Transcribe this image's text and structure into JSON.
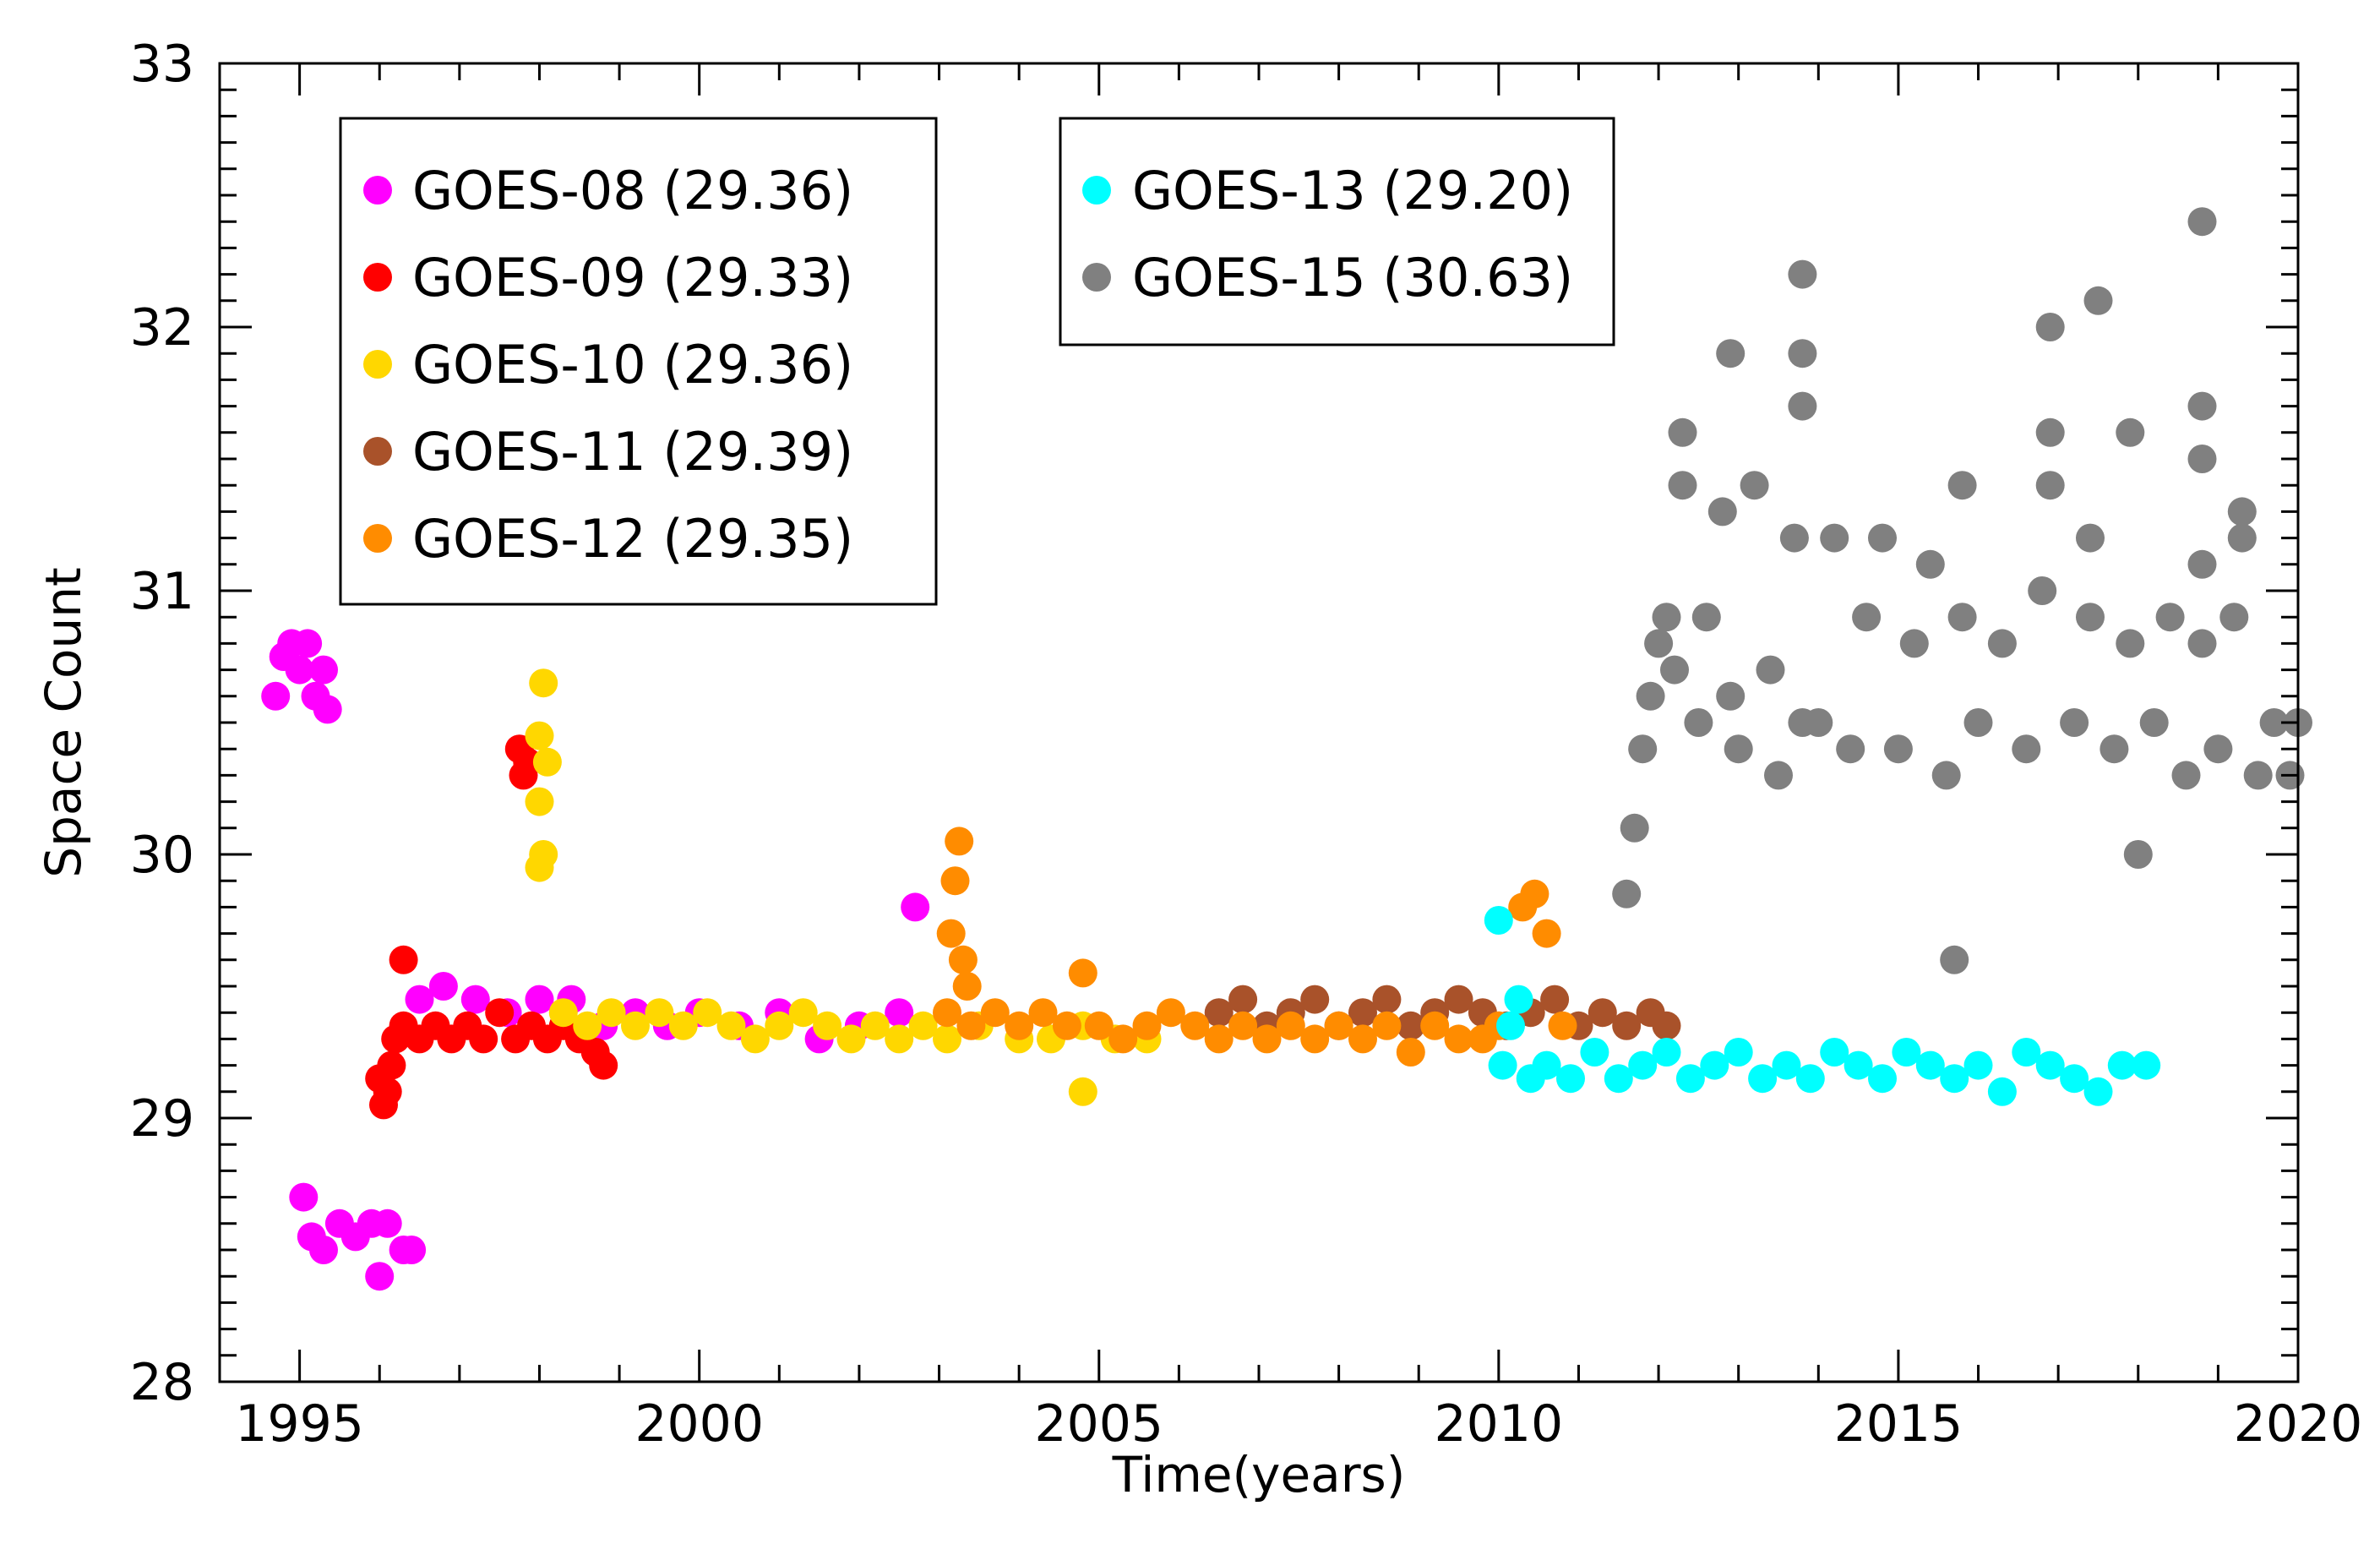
{
  "chart_data": {
    "type": "scatter",
    "title": "",
    "xlabel": "Time(years)",
    "ylabel": "Space Count",
    "xlim": [
      1994,
      2020
    ],
    "ylim": [
      28,
      33
    ],
    "xticks": [
      1995,
      2000,
      2005,
      2010,
      2015,
      2020
    ],
    "yticks": [
      28,
      29,
      30,
      31,
      32,
      33
    ],
    "xtick_labels": [
      "1995",
      "2000",
      "2005",
      "2010",
      "2015",
      "2020"
    ],
    "ytick_labels": [
      "28",
      "29",
      "30",
      "31",
      "32",
      "33"
    ],
    "grid": false,
    "legend_placement": "top-left",
    "series": [
      {
        "name": "GOES-08",
        "label": "GOES-08 (29.36)",
        "mean": 29.36,
        "color": "#ff00ff",
        "points": [
          [
            1994.7,
            30.6
          ],
          [
            1994.8,
            30.75
          ],
          [
            1994.9,
            30.8
          ],
          [
            1995.0,
            30.7
          ],
          [
            1995.1,
            30.8
          ],
          [
            1995.2,
            30.6
          ],
          [
            1995.3,
            30.7
          ],
          [
            1995.35,
            30.55
          ],
          [
            1995.05,
            28.7
          ],
          [
            1995.15,
            28.55
          ],
          [
            1995.3,
            28.5
          ],
          [
            1995.5,
            28.6
          ],
          [
            1995.7,
            28.55
          ],
          [
            1995.9,
            28.6
          ],
          [
            1996.0,
            28.4
          ],
          [
            1996.1,
            28.6
          ],
          [
            1996.3,
            28.5
          ],
          [
            1996.4,
            28.5
          ],
          [
            1996.5,
            29.45
          ],
          [
            1996.8,
            29.5
          ],
          [
            1997.2,
            29.45
          ],
          [
            1997.6,
            29.4
          ],
          [
            1998.0,
            29.45
          ],
          [
            1998.4,
            29.45
          ],
          [
            1998.8,
            29.35
          ],
          [
            1999.2,
            29.4
          ],
          [
            1999.6,
            29.35
          ],
          [
            2000.0,
            29.4
          ],
          [
            2000.5,
            29.35
          ],
          [
            2001.0,
            29.4
          ],
          [
            2001.5,
            29.3
          ],
          [
            2002.0,
            29.35
          ],
          [
            2002.5,
            29.4
          ],
          [
            2002.7,
            29.8
          ]
        ]
      },
      {
        "name": "GOES-09",
        "label": "GOES-09 (29.33)",
        "mean": 29.33,
        "color": "#ff0000",
        "points": [
          [
            1996.0,
            29.15
          ],
          [
            1996.05,
            29.05
          ],
          [
            1996.1,
            29.1
          ],
          [
            1996.15,
            29.2
          ],
          [
            1996.2,
            29.3
          ],
          [
            1996.3,
            29.35
          ],
          [
            1996.3,
            29.6
          ],
          [
            1996.5,
            29.3
          ],
          [
            1996.7,
            29.35
          ],
          [
            1996.9,
            29.3
          ],
          [
            1997.1,
            29.35
          ],
          [
            1997.3,
            29.3
          ],
          [
            1997.5,
            29.4
          ],
          [
            1997.7,
            29.3
          ],
          [
            1997.9,
            29.35
          ],
          [
            1997.75,
            30.4
          ],
          [
            1997.85,
            30.35
          ],
          [
            1997.8,
            30.3
          ],
          [
            1998.1,
            29.3
          ],
          [
            1998.3,
            29.35
          ],
          [
            1998.5,
            29.3
          ],
          [
            1998.7,
            29.25
          ],
          [
            1998.8,
            29.2
          ]
        ]
      },
      {
        "name": "GOES-10",
        "label": "GOES-10 (29.36)",
        "mean": 29.36,
        "color": "#ffd700",
        "points": [
          [
            1998.0,
            29.95
          ],
          [
            1998.0,
            30.2
          ],
          [
            1998.0,
            30.45
          ],
          [
            1998.05,
            30.65
          ],
          [
            1998.1,
            30.35
          ],
          [
            1998.05,
            30.0
          ],
          [
            1998.3,
            29.4
          ],
          [
            1998.6,
            29.35
          ],
          [
            1998.9,
            29.4
          ],
          [
            1999.2,
            29.35
          ],
          [
            1999.5,
            29.4
          ],
          [
            1999.8,
            29.35
          ],
          [
            2000.1,
            29.4
          ],
          [
            2000.4,
            29.35
          ],
          [
            2000.7,
            29.3
          ],
          [
            2001.0,
            29.35
          ],
          [
            2001.3,
            29.4
          ],
          [
            2001.6,
            29.35
          ],
          [
            2001.9,
            29.3
          ],
          [
            2002.2,
            29.35
          ],
          [
            2002.5,
            29.3
          ],
          [
            2002.8,
            29.35
          ],
          [
            2003.1,
            29.3
          ],
          [
            2003.5,
            29.35
          ],
          [
            2004.0,
            29.3
          ],
          [
            2004.4,
            29.3
          ],
          [
            2004.8,
            29.35
          ],
          [
            2004.8,
            29.1
          ],
          [
            2005.2,
            29.3
          ],
          [
            2005.6,
            29.3
          ]
        ]
      },
      {
        "name": "GOES-11",
        "label": "GOES-11 (29.39)",
        "mean": 29.39,
        "color": "#a9522a",
        "points": [
          [
            2006.5,
            29.4
          ],
          [
            2006.8,
            29.45
          ],
          [
            2007.1,
            29.35
          ],
          [
            2007.4,
            29.4
          ],
          [
            2007.7,
            29.45
          ],
          [
            2008.0,
            29.35
          ],
          [
            2008.3,
            29.4
          ],
          [
            2008.6,
            29.45
          ],
          [
            2008.9,
            29.35
          ],
          [
            2009.2,
            29.4
          ],
          [
            2009.5,
            29.45
          ],
          [
            2009.8,
            29.4
          ],
          [
            2010.1,
            29.35
          ],
          [
            2010.4,
            29.4
          ],
          [
            2010.7,
            29.45
          ],
          [
            2011.0,
            29.35
          ],
          [
            2011.3,
            29.4
          ],
          [
            2011.6,
            29.35
          ],
          [
            2011.9,
            29.4
          ],
          [
            2012.1,
            29.35
          ]
        ]
      },
      {
        "name": "GOES-12",
        "label": "GOES-12 (29.35)",
        "mean": 29.35,
        "color": "#ff8c00",
        "points": [
          [
            2003.1,
            29.4
          ],
          [
            2003.15,
            29.7
          ],
          [
            2003.2,
            29.9
          ],
          [
            2003.25,
            30.05
          ],
          [
            2003.3,
            29.6
          ],
          [
            2003.35,
            29.5
          ],
          [
            2003.4,
            29.35
          ],
          [
            2003.7,
            29.4
          ],
          [
            2004.0,
            29.35
          ],
          [
            2004.3,
            29.4
          ],
          [
            2004.6,
            29.35
          ],
          [
            2004.8,
            29.55
          ],
          [
            2005.0,
            29.35
          ],
          [
            2005.3,
            29.3
          ],
          [
            2005.6,
            29.35
          ],
          [
            2005.9,
            29.4
          ],
          [
            2006.2,
            29.35
          ],
          [
            2006.5,
            29.3
          ],
          [
            2006.8,
            29.35
          ],
          [
            2007.1,
            29.3
          ],
          [
            2007.4,
            29.35
          ],
          [
            2007.7,
            29.3
          ],
          [
            2008.0,
            29.35
          ],
          [
            2008.3,
            29.3
          ],
          [
            2008.6,
            29.35
          ],
          [
            2008.9,
            29.25
          ],
          [
            2009.2,
            29.35
          ],
          [
            2009.5,
            29.3
          ],
          [
            2009.8,
            29.3
          ],
          [
            2010.0,
            29.35
          ],
          [
            2010.3,
            29.8
          ],
          [
            2010.45,
            29.85
          ],
          [
            2010.6,
            29.7
          ],
          [
            2010.8,
            29.35
          ]
        ]
      },
      {
        "name": "GOES-13",
        "label": "GOES-13 (29.20)",
        "mean": 29.2,
        "color": "#00ffff",
        "points": [
          [
            2010.0,
            29.75
          ],
          [
            2010.05,
            29.2
          ],
          [
            2010.15,
            29.35
          ],
          [
            2010.25,
            29.45
          ],
          [
            2010.4,
            29.15
          ],
          [
            2010.6,
            29.2
          ],
          [
            2010.9,
            29.15
          ],
          [
            2011.2,
            29.25
          ],
          [
            2011.5,
            29.15
          ],
          [
            2011.8,
            29.2
          ],
          [
            2012.1,
            29.25
          ],
          [
            2012.4,
            29.15
          ],
          [
            2012.7,
            29.2
          ],
          [
            2013.0,
            29.25
          ],
          [
            2013.3,
            29.15
          ],
          [
            2013.6,
            29.2
          ],
          [
            2013.9,
            29.15
          ],
          [
            2014.2,
            29.25
          ],
          [
            2014.5,
            29.2
          ],
          [
            2014.8,
            29.15
          ],
          [
            2015.1,
            29.25
          ],
          [
            2015.4,
            29.2
          ],
          [
            2015.7,
            29.15
          ],
          [
            2016.0,
            29.2
          ],
          [
            2016.3,
            29.1
          ],
          [
            2016.6,
            29.25
          ],
          [
            2016.9,
            29.2
          ],
          [
            2017.2,
            29.15
          ],
          [
            2017.5,
            29.1
          ],
          [
            2017.8,
            29.2
          ],
          [
            2018.1,
            29.2
          ]
        ]
      },
      {
        "name": "GOES-15",
        "label": "GOES-15 (30.63)",
        "mean": 30.63,
        "color": "#808080",
        "points": [
          [
            2011.6,
            29.85
          ],
          [
            2011.7,
            30.1
          ],
          [
            2011.8,
            30.4
          ],
          [
            2011.9,
            30.6
          ],
          [
            2012.0,
            30.8
          ],
          [
            2012.1,
            30.9
          ],
          [
            2012.2,
            30.7
          ],
          [
            2012.3,
            31.4
          ],
          [
            2012.3,
            31.6
          ],
          [
            2012.5,
            30.5
          ],
          [
            2012.6,
            30.9
          ],
          [
            2012.8,
            31.3
          ],
          [
            2012.9,
            30.6
          ],
          [
            2012.9,
            31.9
          ],
          [
            2013.0,
            30.4
          ],
          [
            2013.2,
            31.4
          ],
          [
            2013.4,
            30.7
          ],
          [
            2013.5,
            30.3
          ],
          [
            2013.7,
            31.2
          ],
          [
            2013.8,
            30.5
          ],
          [
            2013.8,
            31.7
          ],
          [
            2013.8,
            31.9
          ],
          [
            2013.8,
            32.2
          ],
          [
            2014.0,
            30.5
          ],
          [
            2014.2,
            31.2
          ],
          [
            2014.4,
            30.4
          ],
          [
            2014.6,
            30.9
          ],
          [
            2014.8,
            31.2
          ],
          [
            2015.0,
            30.4
          ],
          [
            2015.2,
            30.8
          ],
          [
            2015.4,
            31.1
          ],
          [
            2015.6,
            30.3
          ],
          [
            2015.8,
            30.9
          ],
          [
            2015.8,
            31.4
          ],
          [
            2015.7,
            29.6
          ],
          [
            2016.0,
            30.5
          ],
          [
            2016.3,
            30.8
          ],
          [
            2016.6,
            30.4
          ],
          [
            2016.8,
            31.0
          ],
          [
            2016.9,
            31.4
          ],
          [
            2016.9,
            31.6
          ],
          [
            2016.9,
            32.0
          ],
          [
            2017.2,
            30.5
          ],
          [
            2017.4,
            30.9
          ],
          [
            2017.4,
            31.2
          ],
          [
            2017.5,
            32.1
          ],
          [
            2017.7,
            30.4
          ],
          [
            2017.9,
            30.8
          ],
          [
            2017.9,
            31.6
          ],
          [
            2018.0,
            30.0
          ],
          [
            2018.2,
            30.5
          ],
          [
            2018.4,
            30.9
          ],
          [
            2018.6,
            30.3
          ],
          [
            2018.8,
            30.8
          ],
          [
            2018.8,
            31.1
          ],
          [
            2018.8,
            31.5
          ],
          [
            2018.8,
            31.7
          ],
          [
            2018.8,
            32.4
          ],
          [
            2019.0,
            30.4
          ],
          [
            2019.2,
            30.9
          ],
          [
            2019.3,
            31.2
          ],
          [
            2019.3,
            31.3
          ],
          [
            2019.5,
            30.3
          ],
          [
            2019.7,
            30.5
          ],
          [
            2019.9,
            30.3
          ],
          [
            2020.0,
            30.5
          ]
        ]
      }
    ]
  }
}
